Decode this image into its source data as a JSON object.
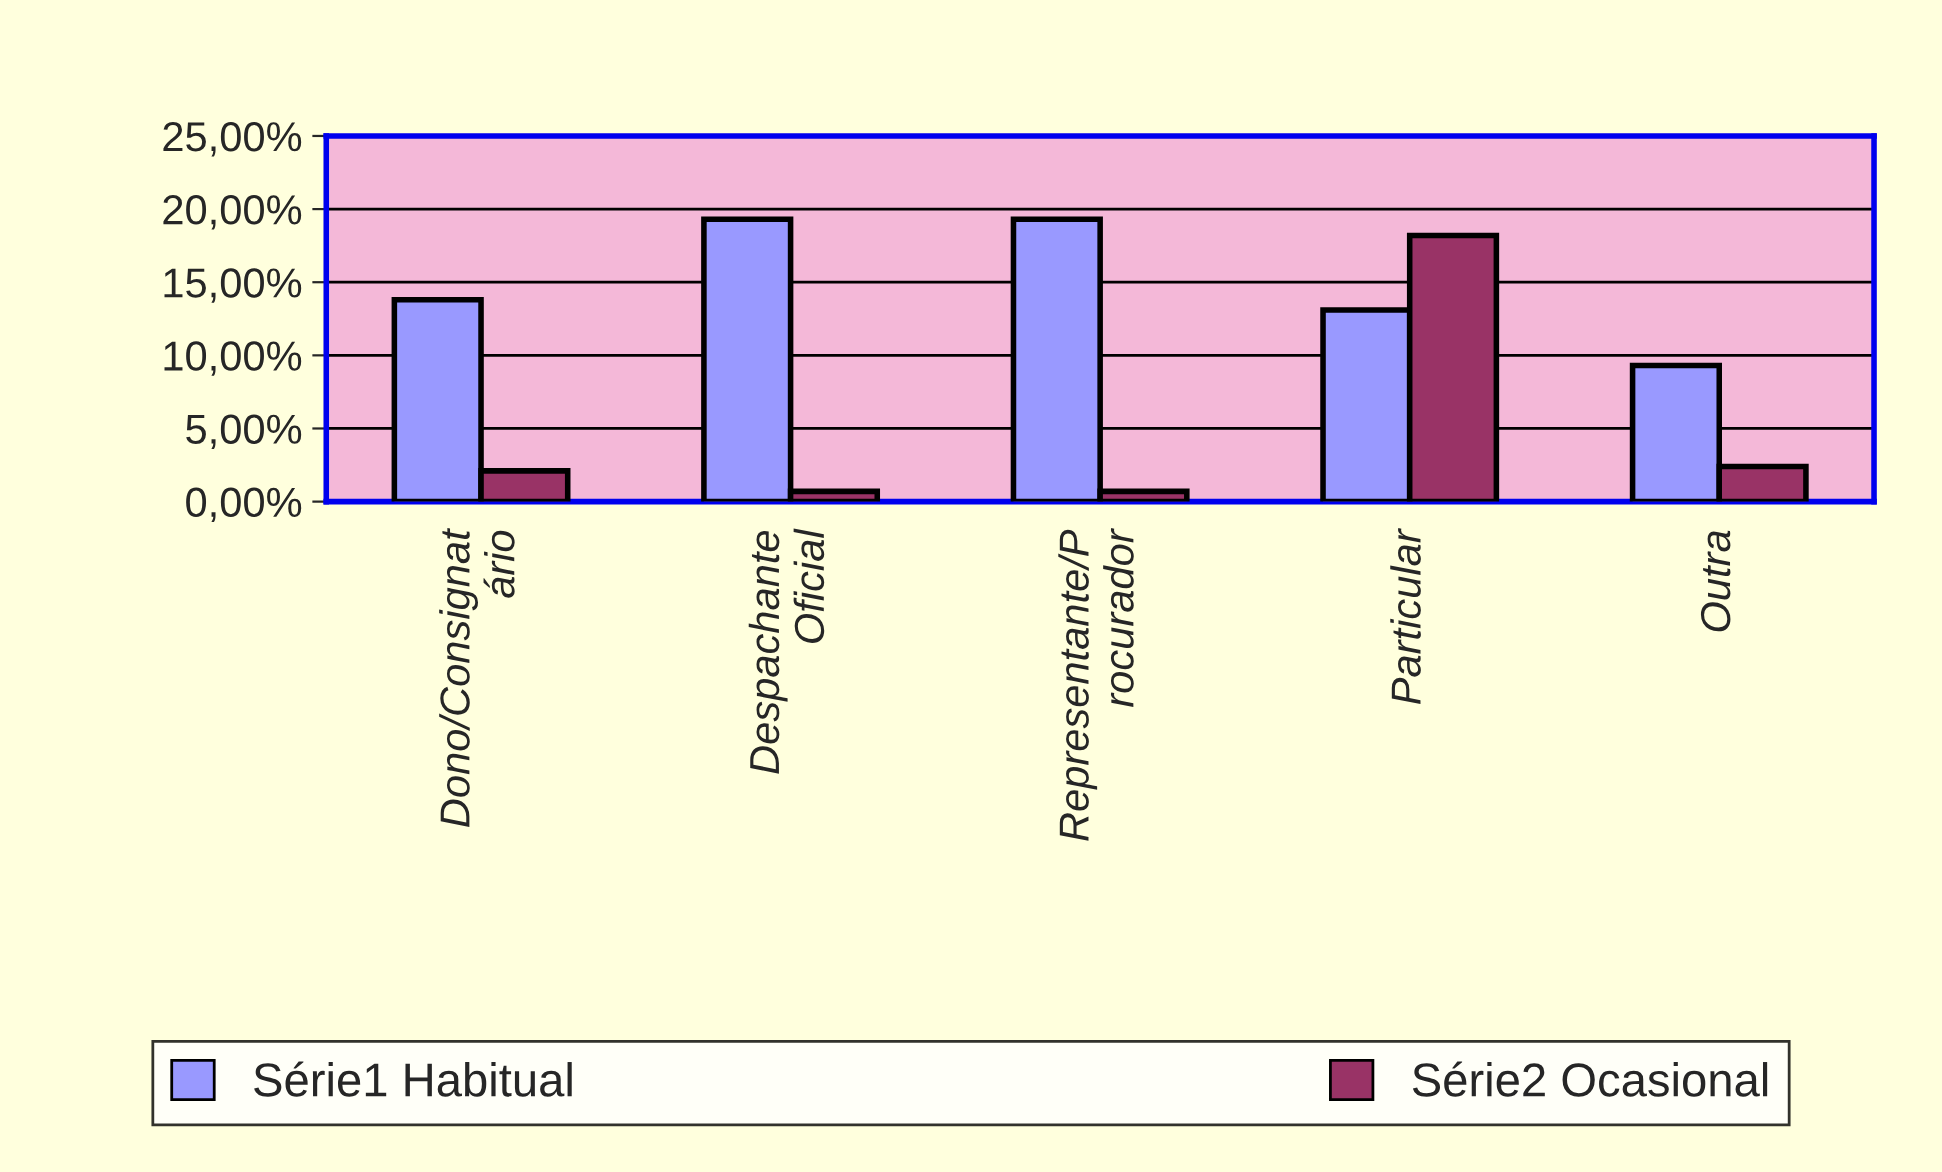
{
  "chart_data": {
    "type": "bar",
    "categories": [
      "Dono/Consignat\nário",
      "Despachante\nOficial",
      "Representante/P\nrocurador",
      "Particular",
      "Outra"
    ],
    "series": [
      {
        "name": "Série1 Habitual",
        "color": "#9999ff",
        "values": [
          13.8,
          19.3,
          19.3,
          13.1,
          9.3
        ]
      },
      {
        "name": "Série2 Ocasional",
        "color": "#993366",
        "values": [
          2.1,
          0.7,
          0.7,
          18.2,
          2.4
        ]
      }
    ],
    "ylim": [
      0,
      25
    ],
    "yticks": [
      {
        "value": 0,
        "label": "0,00%"
      },
      {
        "value": 5,
        "label": "5,00%"
      },
      {
        "value": 10,
        "label": "10,00%"
      },
      {
        "value": 15,
        "label": "15,00%"
      },
      {
        "value": 20,
        "label": "20,00%"
      },
      {
        "value": 25,
        "label": "25,00%"
      }
    ],
    "grid": "y",
    "legend": "bottom"
  }
}
